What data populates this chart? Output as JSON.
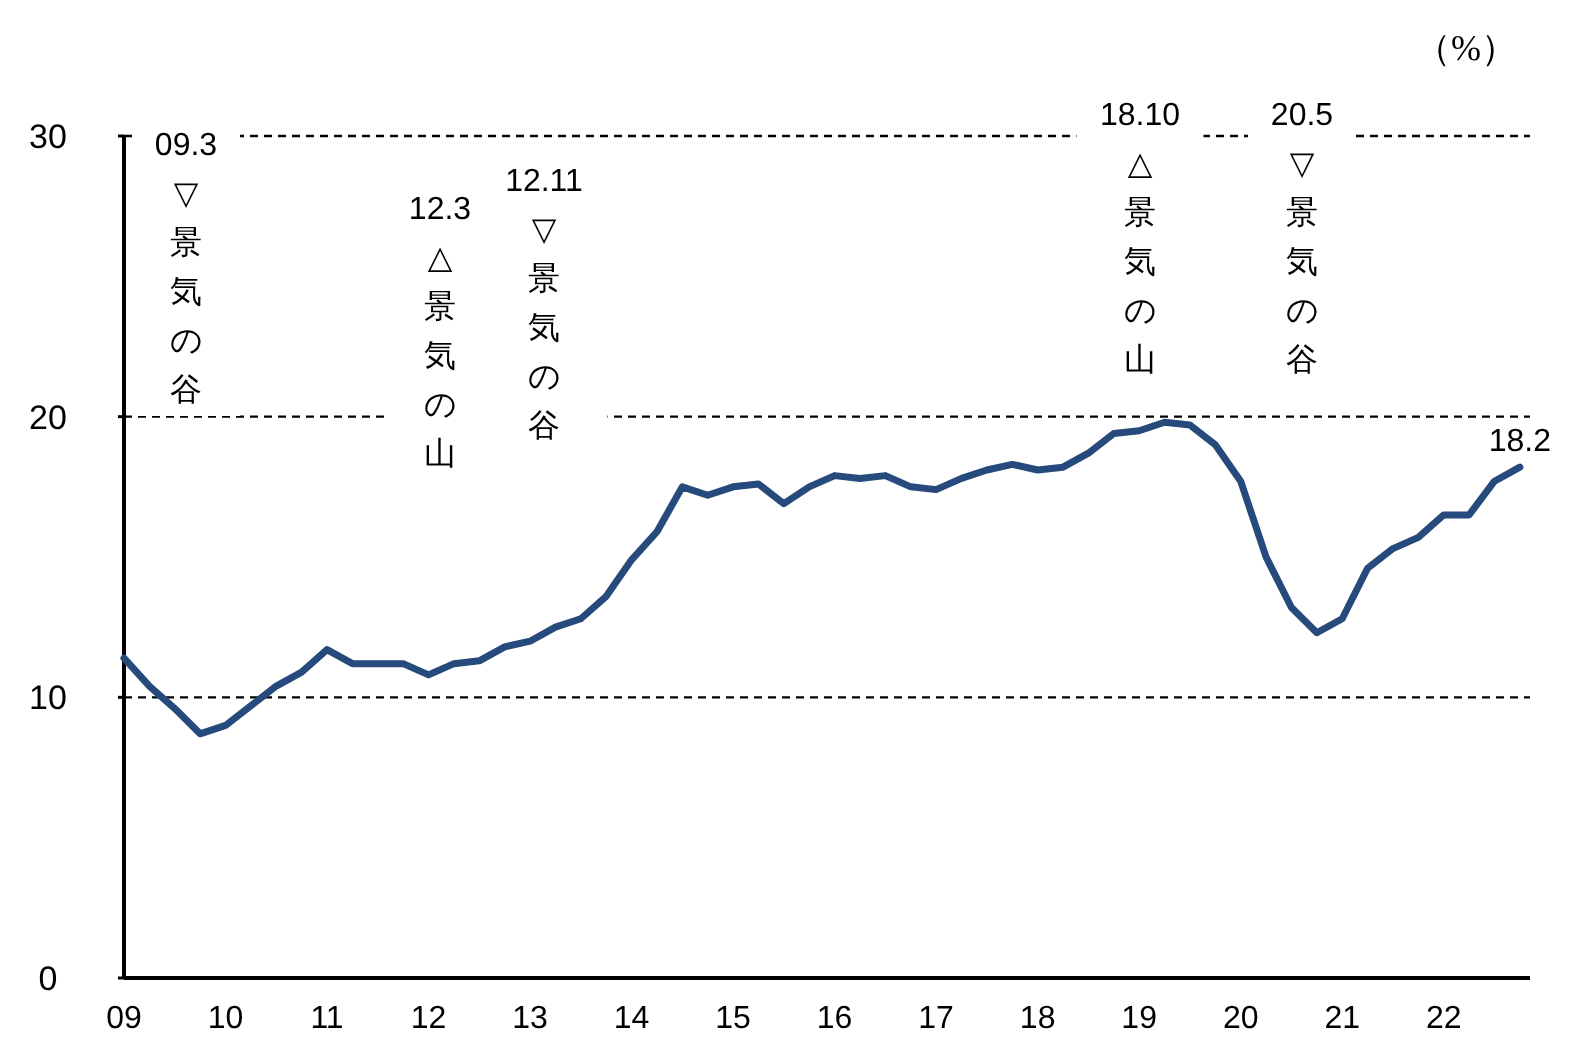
{
  "chart_data": {
    "type": "line",
    "ylabel": "（%）",
    "x": [
      2009,
      2009.25,
      2009.5,
      2009.75,
      2010,
      2010.25,
      2010.5,
      2010.75,
      2011,
      2011.25,
      2011.5,
      2011.75,
      2012,
      2012.25,
      2012.5,
      2012.75,
      2013,
      2013.25,
      2013.5,
      2013.75,
      2014,
      2014.25,
      2014.5,
      2014.75,
      2015,
      2015.25,
      2015.5,
      2015.75,
      2016,
      2016.25,
      2016.5,
      2016.75,
      2017,
      2017.25,
      2017.5,
      2017.75,
      2018,
      2018.25,
      2018.5,
      2018.75,
      2019,
      2019.25,
      2019.5,
      2019.75,
      2020,
      2020.25,
      2020.5,
      2020.75,
      2021,
      2021.25,
      2021.5,
      2021.75,
      2022,
      2022.25,
      2022.5,
      2022.75
    ],
    "series": [
      {
        "color": "#264a7c",
        "values": [
          11.4,
          10.4,
          9.6,
          8.7,
          9.0,
          9.7,
          10.4,
          10.9,
          11.7,
          11.2,
          11.2,
          11.2,
          10.8,
          11.2,
          11.3,
          11.8,
          12.0,
          12.5,
          12.8,
          13.6,
          14.9,
          15.9,
          17.5,
          17.2,
          17.5,
          17.6,
          16.9,
          17.5,
          17.9,
          17.8,
          17.9,
          17.5,
          17.4,
          17.8,
          18.1,
          18.3,
          18.1,
          18.2,
          18.7,
          19.4,
          19.5,
          19.8,
          19.7,
          19.0,
          17.7,
          15.0,
          13.2,
          12.3,
          12.8,
          14.6,
          15.3,
          15.7,
          16.5,
          16.5,
          17.7,
          18.2
        ]
      }
    ],
    "xlim": [
      2009,
      2022.85
    ],
    "ylim": [
      0,
      30
    ],
    "yticks": [
      0,
      10,
      20,
      30
    ],
    "xticks": [
      {
        "value": 2009,
        "label": "09"
      },
      {
        "value": 2010,
        "label": "10"
      },
      {
        "value": 2011,
        "label": "11"
      },
      {
        "value": 2012,
        "label": "12"
      },
      {
        "value": 2013,
        "label": "13"
      },
      {
        "value": 2014,
        "label": "14"
      },
      {
        "value": 2015,
        "label": "15"
      },
      {
        "value": 2016,
        "label": "16"
      },
      {
        "value": 2017,
        "label": "17"
      },
      {
        "value": 2018,
        "label": "18"
      },
      {
        "value": 2019,
        "label": "19"
      },
      {
        "value": 2020,
        "label": "20"
      },
      {
        "value": 2021,
        "label": "21"
      },
      {
        "value": 2022,
        "label": "22"
      }
    ],
    "grid": "y",
    "annotations": [
      "09.3\n▽景気の谷",
      "12.3\n△景気の山",
      "12.11\n▽景気の谷",
      "18.10\n△景気の山",
      "20.5\n▽景気の谷",
      {
        "text": "18.2",
        "x": 2022.75,
        "y": 18.2
      }
    ]
  }
}
